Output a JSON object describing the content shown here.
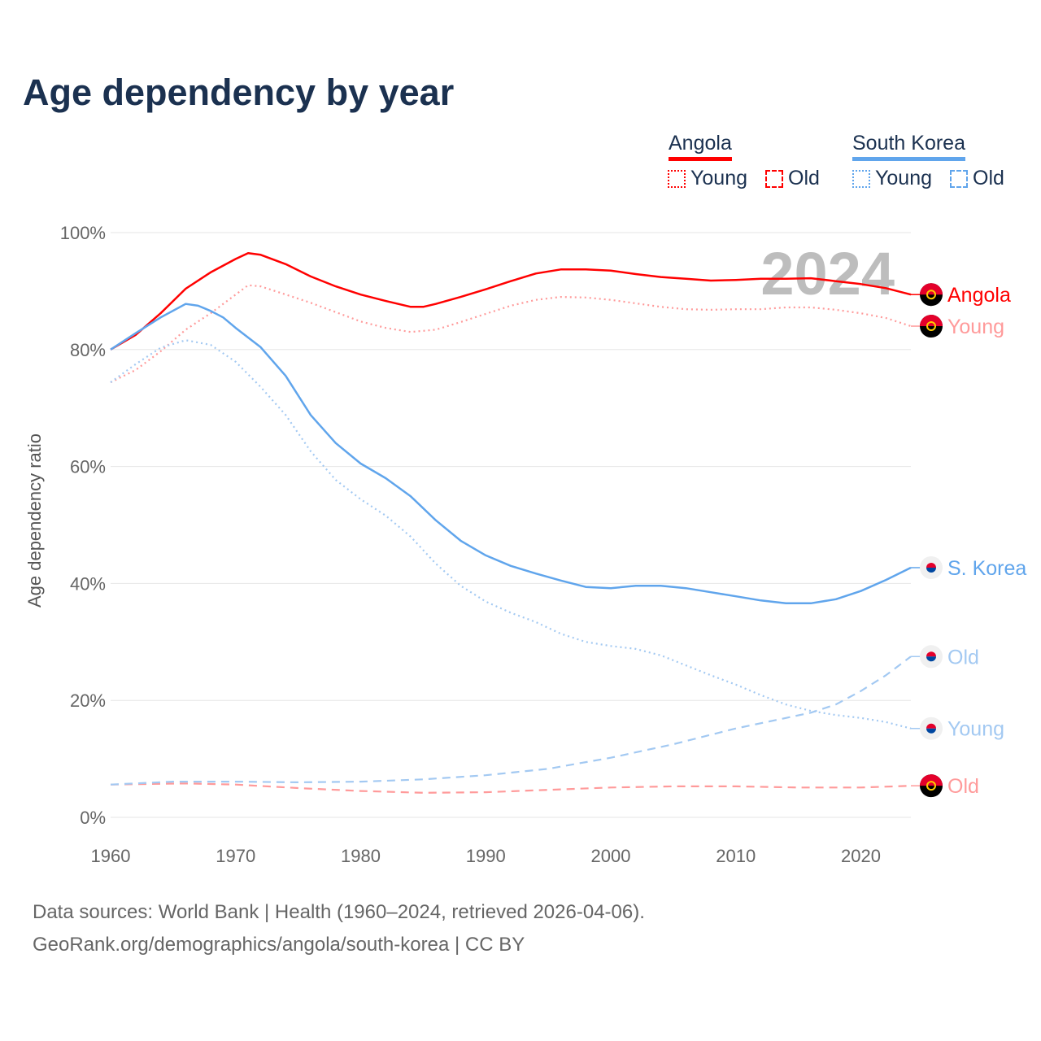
{
  "title": "Age dependency by year",
  "legend": {
    "groups": [
      {
        "name": "Angola",
        "color": "#ff0000",
        "items": [
          "Young",
          "Old"
        ]
      },
      {
        "name": "South Korea",
        "color": "#60a5ec",
        "items": [
          "Young",
          "Old"
        ]
      }
    ]
  },
  "footer": {
    "line1": "Data sources: World Bank | Health (1960–2024, retrieved 2026-04-06).",
    "line2": "GeoRank.org/demographics/angola/south-korea | CC BY"
  },
  "chart_data": {
    "type": "line",
    "title": "Age dependency by year",
    "ylabel": "Age dependency ratio",
    "xlabel": "",
    "year_label": "2024",
    "xlim": [
      1960,
      2024
    ],
    "ylim": [
      0,
      100
    ],
    "x_ticks": [
      "1960",
      "1970",
      "1980",
      "1990",
      "2000",
      "2010",
      "2020"
    ],
    "y_ticks": [
      "0%",
      "20%",
      "40%",
      "60%",
      "80%",
      "100%"
    ],
    "grid": true,
    "series": [
      {
        "name": "Angola",
        "label": "Angola",
        "style": "solid",
        "color": "#ff0000",
        "flag": "angola",
        "x": [
          1960,
          1962,
          1964,
          1966,
          1968,
          1970,
          1971,
          1972,
          1974,
          1976,
          1978,
          1980,
          1982,
          1984,
          1985,
          1986,
          1988,
          1990,
          1992,
          1994,
          1996,
          1998,
          2000,
          2002,
          2004,
          2006,
          2008,
          2010,
          2012,
          2014,
          2016,
          2018,
          2020,
          2022,
          2024
        ],
        "y": [
          80.0,
          82.5,
          86.2,
          90.4,
          93.2,
          95.5,
          96.5,
          96.2,
          94.6,
          92.5,
          90.8,
          89.4,
          88.3,
          87.3,
          87.3,
          87.8,
          89.0,
          90.3,
          91.7,
          93.0,
          93.7,
          93.7,
          93.5,
          92.9,
          92.4,
          92.1,
          91.8,
          91.9,
          92.1,
          92.1,
          92.2,
          91.7,
          91.2,
          90.5,
          89.4
        ]
      },
      {
        "name": "Angola Young",
        "label": "Young",
        "style": "dotted",
        "color": "#ff9a9a",
        "flag": "angola",
        "x": [
          1960,
          1962,
          1964,
          1966,
          1968,
          1970,
          1971,
          1972,
          1974,
          1976,
          1978,
          1980,
          1982,
          1984,
          1986,
          1988,
          1990,
          1992,
          1994,
          1996,
          1998,
          2000,
          2002,
          2004,
          2006,
          2008,
          2010,
          2012,
          2014,
          2016,
          2018,
          2020,
          2022,
          2024
        ],
        "y": [
          74.4,
          76.5,
          79.7,
          83.4,
          86.2,
          89.4,
          91.0,
          90.8,
          89.4,
          88.0,
          86.4,
          84.8,
          83.7,
          83.0,
          83.4,
          84.7,
          86.1,
          87.5,
          88.5,
          89.0,
          88.9,
          88.5,
          87.9,
          87.3,
          86.9,
          86.8,
          86.9,
          86.9,
          87.2,
          87.2,
          86.8,
          86.2,
          85.4,
          84.0
        ]
      },
      {
        "name": "Angola Old",
        "label": "Old",
        "style": "dashed",
        "color": "#ff9a9a",
        "flag": "angola",
        "x": [
          1960,
          1966,
          1970,
          1975,
          1980,
          1985,
          1990,
          1995,
          2000,
          2005,
          2010,
          2015,
          2020,
          2024
        ],
        "y": [
          5.6,
          5.8,
          5.6,
          5.0,
          4.5,
          4.2,
          4.3,
          4.7,
          5.1,
          5.3,
          5.3,
          5.1,
          5.1,
          5.4
        ]
      },
      {
        "name": "South Korea",
        "label": "S. Korea",
        "style": "solid",
        "color": "#60a5ec",
        "flag": "korea",
        "x": [
          1960,
          1962,
          1964,
          1966,
          1967,
          1968,
          1969,
          1970,
          1972,
          1974,
          1976,
          1978,
          1980,
          1982,
          1984,
          1986,
          1988,
          1990,
          1992,
          1994,
          1996,
          1998,
          2000,
          2002,
          2004,
          2006,
          2008,
          2010,
          2012,
          2014,
          2016,
          2018,
          2020,
          2022,
          2024
        ],
        "y": [
          80.0,
          82.8,
          85.5,
          87.8,
          87.5,
          86.6,
          85.5,
          83.7,
          80.4,
          75.5,
          68.8,
          64.0,
          60.5,
          58.0,
          54.9,
          50.8,
          47.3,
          44.8,
          43.0,
          41.7,
          40.5,
          39.4,
          39.2,
          39.6,
          39.6,
          39.2,
          38.5,
          37.8,
          37.1,
          36.6,
          36.6,
          37.3,
          38.7,
          40.6,
          42.7
        ]
      },
      {
        "name": "South Korea Old",
        "label": "Old",
        "style": "dashed",
        "color": "#a3c9f2",
        "flag": "korea",
        "x": [
          1960,
          1965,
          1970,
          1975,
          1980,
          1985,
          1990,
          1995,
          2000,
          2005,
          2010,
          2014,
          2016,
          2018,
          2020,
          2022,
          2024
        ],
        "y": [
          5.6,
          6.1,
          6.1,
          6.0,
          6.1,
          6.5,
          7.2,
          8.3,
          10.2,
          12.5,
          15.2,
          17.0,
          17.9,
          19.3,
          21.6,
          24.3,
          27.5
        ]
      },
      {
        "name": "South Korea Young",
        "label": "Young",
        "style": "dotted",
        "color": "#a3c9f2",
        "flag": "korea",
        "x": [
          1960,
          1962,
          1964,
          1966,
          1968,
          1970,
          1972,
          1974,
          1976,
          1978,
          1980,
          1982,
          1984,
          1986,
          1988,
          1990,
          1992,
          1994,
          1996,
          1998,
          2000,
          2002,
          2004,
          2006,
          2008,
          2010,
          2012,
          2014,
          2016,
          2018,
          2020,
          2022,
          2024
        ],
        "y": [
          74.4,
          77.5,
          80.3,
          81.6,
          80.8,
          77.9,
          73.6,
          68.8,
          62.6,
          57.7,
          54.4,
          51.6,
          48.0,
          43.4,
          39.6,
          36.9,
          35.0,
          33.4,
          31.4,
          30.0,
          29.3,
          28.8,
          27.7,
          26.0,
          24.3,
          22.7,
          20.9,
          19.3,
          18.2,
          17.5,
          17.0,
          16.3,
          15.2
        ]
      }
    ]
  }
}
